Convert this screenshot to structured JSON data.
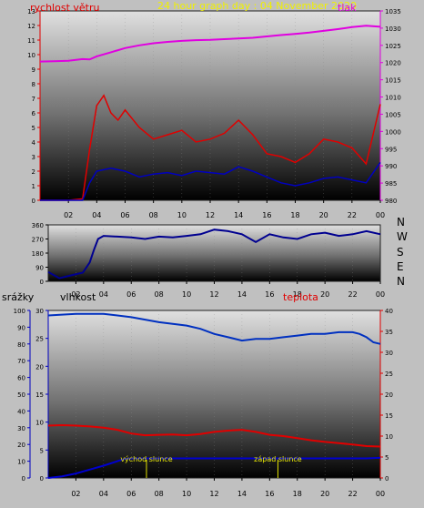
{
  "chart_data": [
    {
      "type": "line",
      "title": "24 hour graph day : 04 November 2020",
      "left_axis_label": "rychlost větru",
      "right_axis_label": "tlak",
      "x_ticks": [
        "02",
        "04",
        "06",
        "08",
        "10",
        "12",
        "14",
        "16",
        "18",
        "20",
        "22",
        "00"
      ],
      "left_ticks": [
        "0",
        "1",
        "2",
        "3",
        "4",
        "5",
        "6",
        "7",
        "8",
        "9",
        "10",
        "11",
        "12",
        "13"
      ],
      "right_ticks": [
        "980",
        "985",
        "990",
        "995",
        "1000",
        "1005",
        "1010",
        "1015",
        "1020",
        "1025",
        "1030",
        "1035"
      ],
      "left_ylim": [
        0,
        13
      ],
      "right_ylim": [
        980,
        1035
      ],
      "x_range_hours": [
        0,
        24
      ],
      "series": [
        {
          "axis": "right",
          "color": "#e000e0",
          "x": [
            0,
            1,
            2,
            3,
            3.5,
            4,
            5,
            6,
            7,
            8,
            9,
            10,
            11,
            12,
            13,
            14,
            15,
            16,
            17,
            18,
            19,
            20,
            21,
            22,
            23,
            24
          ],
          "y": [
            1020.3,
            1020.4,
            1020.5,
            1021.0,
            1020.9,
            1021.8,
            1023.0,
            1024.2,
            1025.0,
            1025.6,
            1026.0,
            1026.3,
            1026.5,
            1026.6,
            1026.8,
            1027.0,
            1027.2,
            1027.6,
            1028.0,
            1028.3,
            1028.7,
            1029.2,
            1029.7,
            1030.3,
            1030.7,
            1030.4
          ]
        },
        {
          "axis": "left",
          "color": "#e00000",
          "x": [
            0,
            2,
            3,
            3.5,
            4,
            4.5,
            5,
            5.5,
            6,
            7,
            8,
            9,
            10,
            11,
            12,
            13,
            14,
            15,
            16,
            17,
            18,
            19,
            20,
            21,
            22,
            23,
            24
          ],
          "y": [
            0,
            0,
            0.1,
            3.5,
            6.5,
            7.2,
            6.0,
            5.5,
            6.2,
            5.0,
            4.2,
            4.5,
            4.8,
            4.0,
            4.2,
            4.6,
            5.5,
            4.5,
            3.2,
            3.0,
            2.6,
            3.2,
            4.2,
            4.0,
            3.6,
            2.5,
            6.6
          ]
        },
        {
          "axis": "left",
          "color": "#0000c0",
          "x": [
            0,
            2,
            3,
            3.5,
            4,
            5,
            6,
            7,
            8,
            9,
            10,
            11,
            12,
            13,
            14,
            15,
            16,
            17,
            18,
            19,
            20,
            21,
            22,
            23,
            24
          ],
          "y": [
            0,
            0,
            0,
            1.2,
            2.0,
            2.2,
            2.0,
            1.6,
            1.8,
            1.9,
            1.7,
            2.0,
            1.9,
            1.8,
            2.3,
            2.0,
            1.6,
            1.2,
            1.0,
            1.2,
            1.5,
            1.6,
            1.4,
            1.2,
            2.6
          ]
        }
      ]
    },
    {
      "type": "line",
      "ylim": [
        0,
        360
      ],
      "y_ticks": [
        "0",
        "90",
        "180",
        "270",
        "360"
      ],
      "x_ticks": [
        "02",
        "04",
        "06",
        "08",
        "10",
        "12",
        "14",
        "16",
        "18",
        "20",
        "22",
        "00"
      ],
      "compass": [
        "N",
        "W",
        "S",
        "E",
        "N"
      ],
      "series": [
        {
          "color": "#000090",
          "x": [
            0,
            0.8,
            1.5,
            2.5,
            3.0,
            3.3,
            3.6,
            4.0,
            5,
            6,
            7,
            8,
            9,
            10,
            11,
            12,
            13,
            14,
            15,
            16,
            17,
            18,
            19,
            20,
            21,
            22,
            23,
            24
          ],
          "y": [
            60,
            20,
            35,
            55,
            120,
            200,
            270,
            290,
            285,
            280,
            270,
            285,
            280,
            290,
            300,
            330,
            320,
            300,
            250,
            300,
            280,
            270,
            300,
            310,
            290,
            300,
            320,
            300
          ]
        }
      ]
    },
    {
      "type": "line",
      "labels": {
        "srazky": "srážky",
        "vlhkost": "vlhkost",
        "teplota": "teplota"
      },
      "annotations": [
        "východ slunce",
        "západ slunce"
      ],
      "x_ticks": [
        "02",
        "04",
        "06",
        "08",
        "10",
        "12",
        "14",
        "16",
        "18",
        "20",
        "22",
        "00"
      ],
      "left_ticks": [
        "0",
        "10",
        "20",
        "30",
        "40",
        "50",
        "60",
        "70",
        "80",
        "90",
        "100"
      ],
      "mid_ticks": [
        "0",
        "5",
        "10",
        "15",
        "20",
        "25",
        "30"
      ],
      "right_ticks": [
        "0",
        "5",
        "10",
        "15",
        "20",
        "25",
        "30",
        "35",
        "40"
      ],
      "left_ylim": [
        0,
        100
      ],
      "mid_ylim": [
        0,
        30
      ],
      "right_ylim": [
        0,
        40
      ],
      "series": [
        {
          "axis": "left",
          "color": "#0030c0",
          "x": [
            0,
            2,
            4,
            6,
            8,
            10,
            11,
            12,
            13,
            14,
            15,
            16,
            17,
            18,
            19,
            20,
            21,
            22,
            22.5,
            23,
            23.5,
            24
          ],
          "y": [
            97,
            98,
            98,
            96,
            93,
            91,
            89,
            86,
            84,
            82,
            83,
            83,
            84,
            85,
            86,
            86,
            87,
            87,
            86,
            84,
            81,
            80
          ]
        },
        {
          "axis": "right",
          "color": "#e00000",
          "x": [
            0,
            1,
            2,
            3,
            4,
            5,
            6,
            7,
            8,
            9,
            10,
            11,
            12,
            13,
            14,
            15,
            16,
            17,
            18,
            19,
            20,
            21,
            22,
            23,
            24
          ],
          "y": [
            12.5,
            12.6,
            12.5,
            12.3,
            12.0,
            11.5,
            10.6,
            10.2,
            10.3,
            10.4,
            10.2,
            10.5,
            11.0,
            11.3,
            11.5,
            11.0,
            10.3,
            10.0,
            9.5,
            9.0,
            8.6,
            8.3,
            8.0,
            7.6,
            7.5
          ]
        },
        {
          "axis": "mid",
          "color": "#0000d0",
          "x": [
            0,
            1,
            2,
            3,
            4,
            5,
            5.5,
            6,
            7,
            8,
            9,
            10,
            11,
            12,
            13,
            14,
            15,
            16,
            17,
            18,
            19,
            20,
            21,
            22,
            23,
            24
          ],
          "y": [
            0,
            0.3,
            0.8,
            1.5,
            2.2,
            3.0,
            3.4,
            3.5,
            3.5,
            3.5,
            3.5,
            3.5,
            3.5,
            3.5,
            3.5,
            3.5,
            3.5,
            3.5,
            3.5,
            3.5,
            3.5,
            3.5,
            3.5,
            3.5,
            3.5,
            3.6
          ]
        }
      ]
    }
  ]
}
